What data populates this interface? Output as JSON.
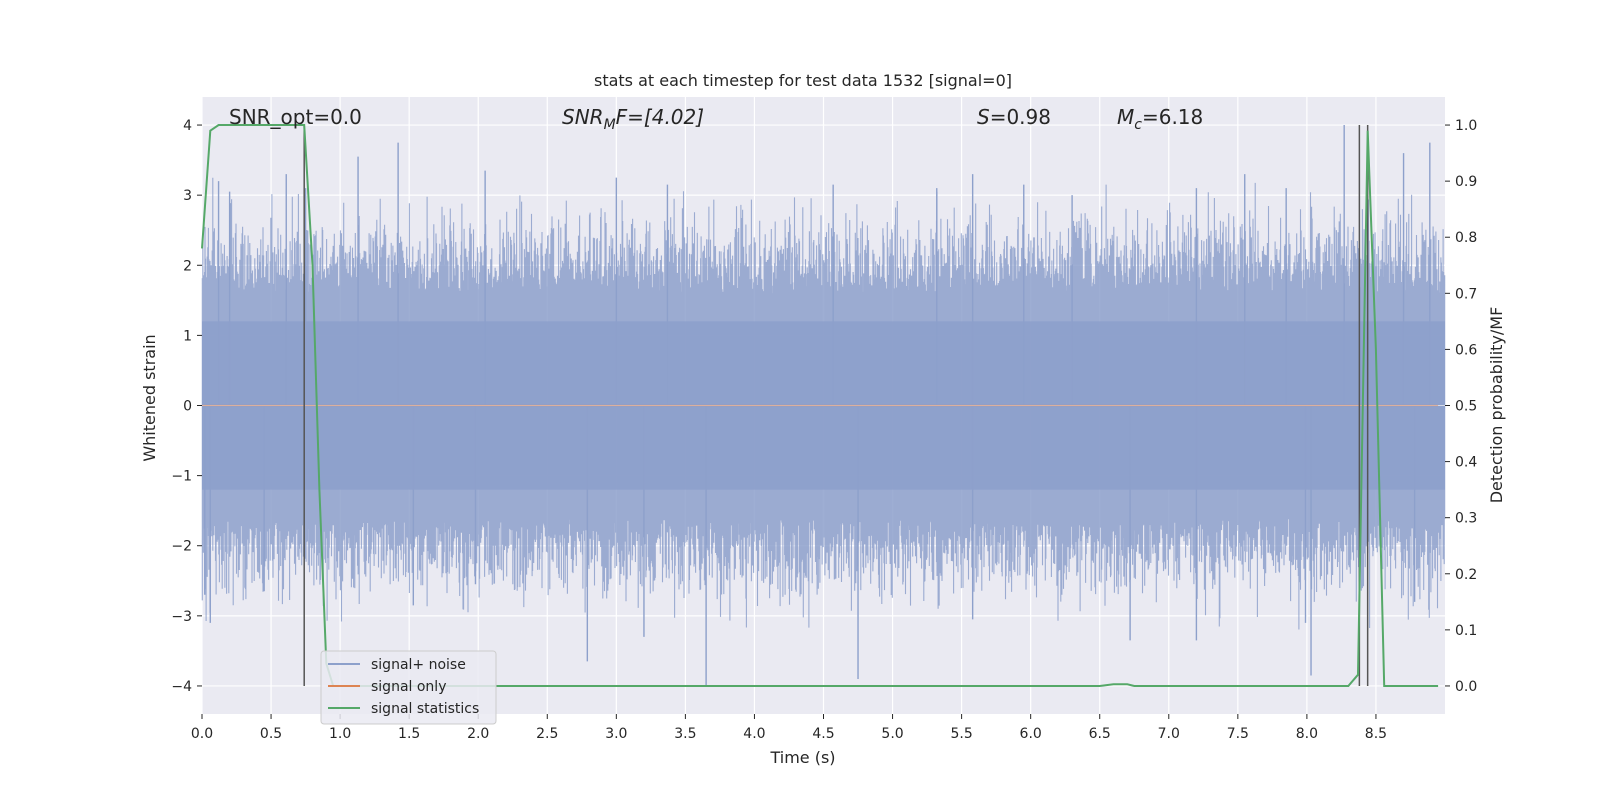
{
  "chart_data": {
    "type": "line",
    "title": "stats at each timestep for test data 1532 [signal=0]",
    "xlabel": "Time (s)",
    "ylabel": "Whitened strain",
    "y2label": "Detection probability/MF",
    "xlim": [
      0.0,
      9.0
    ],
    "ylim": [
      -4.4,
      4.4
    ],
    "y2lim": [
      -0.05,
      1.05
    ],
    "x_ticks": [
      0.0,
      0.5,
      1.0,
      1.5,
      2.0,
      2.5,
      3.0,
      3.5,
      4.0,
      4.5,
      5.0,
      5.5,
      6.0,
      6.5,
      7.0,
      7.5,
      8.0,
      8.5
    ],
    "x_tick_labels": [
      "0.0",
      "0.5",
      "1.0",
      "1.5",
      "2.0",
      "2.5",
      "3.0",
      "3.5",
      "4.0",
      "4.5",
      "5.0",
      "5.5",
      "6.0",
      "6.5",
      "7.0",
      "7.5",
      "8.0",
      "8.5"
    ],
    "y_ticks": [
      -4,
      -3,
      -2,
      -1,
      0,
      1,
      2,
      3,
      4
    ],
    "y_tick_labels": [
      "−4",
      "−3",
      "−2",
      "−1",
      "0",
      "1",
      "2",
      "3",
      "4"
    ],
    "y2_ticks": [
      0.0,
      0.1,
      0.2,
      0.3,
      0.4,
      0.5,
      0.6,
      0.7,
      0.8,
      0.9,
      1.0
    ],
    "y2_tick_labels": [
      "0.0",
      "0.1",
      "0.2",
      "0.3",
      "0.4",
      "0.5",
      "0.6",
      "0.7",
      "0.8",
      "0.9",
      "1.0"
    ],
    "grid": true,
    "legend_position": "bottom-left",
    "legend": [
      {
        "name": "signal+ noise",
        "color": "#8da0cb"
      },
      {
        "name": "signal only",
        "color": "#dd8452"
      },
      {
        "name": "signal statistics",
        "color": "#55a868"
      }
    ],
    "annotations": {
      "snr_opt": "SNR_opt=0.0",
      "snr_mf_main": "SNR",
      "snr_mf_sub": "M",
      "snr_mf_tail": "F=[4.02]",
      "s_main": "S",
      "s_tail": "=0.98",
      "mc_main": "M",
      "mc_sub": "c",
      "mc_tail": "=6.18"
    },
    "vertical_lines_x": [
      0.74,
      8.38,
      8.44
    ],
    "noise_series": {
      "name": "signal+ noise",
      "color": "#8da0cb",
      "typical_range": [
        -1.6,
        1.6
      ],
      "peaks": [
        {
          "x": 0.06,
          "y": -3.1
        },
        {
          "x": 0.02,
          "y": -2.7
        },
        {
          "x": 0.12,
          "y": 3.2
        },
        {
          "x": 0.2,
          "y": 3.05
        },
        {
          "x": 0.45,
          "y": -2.65
        },
        {
          "x": 0.61,
          "y": 3.3
        },
        {
          "x": 0.75,
          "y": 3.1
        },
        {
          "x": 1.13,
          "y": 3.55
        },
        {
          "x": 1.42,
          "y": 3.75
        },
        {
          "x": 1.53,
          "y": -2.85
        },
        {
          "x": 1.98,
          "y": -2.55
        },
        {
          "x": 2.05,
          "y": 3.35
        },
        {
          "x": 2.79,
          "y": -3.65
        },
        {
          "x": 3.0,
          "y": 3.25
        },
        {
          "x": 3.2,
          "y": -3.3
        },
        {
          "x": 3.37,
          "y": 3.15
        },
        {
          "x": 3.65,
          "y": -4.0
        },
        {
          "x": 4.57,
          "y": 3.15
        },
        {
          "x": 4.75,
          "y": -3.9
        },
        {
          "x": 5.32,
          "y": 3.1
        },
        {
          "x": 5.58,
          "y": 3.3
        },
        {
          "x": 5.58,
          "y": -3.05
        },
        {
          "x": 5.95,
          "y": 3.15
        },
        {
          "x": 6.3,
          "y": 3.0
        },
        {
          "x": 6.72,
          "y": -3.35
        },
        {
          "x": 7.2,
          "y": 3.1
        },
        {
          "x": 7.2,
          "y": -3.35
        },
        {
          "x": 7.55,
          "y": 3.3
        },
        {
          "x": 7.85,
          "y": 3.1
        },
        {
          "x": 7.99,
          "y": -3.1
        },
        {
          "x": 8.03,
          "y": -3.85
        },
        {
          "x": 8.27,
          "y": 4.0
        },
        {
          "x": 8.7,
          "y": 3.6
        },
        {
          "x": 8.89,
          "y": 3.75
        },
        {
          "x": 8.78,
          "y": -2.8
        }
      ]
    },
    "statistics_series": {
      "name": "signal statistics",
      "color": "#55a868",
      "x": [
        0.0,
        0.06,
        0.12,
        0.5,
        0.74,
        0.8,
        0.85,
        0.9,
        0.95,
        1.5,
        3.0,
        5.0,
        6.5,
        6.6,
        6.65,
        6.7,
        6.75,
        7.5,
        8.3,
        8.37,
        8.44,
        8.5,
        8.56,
        8.62,
        8.95
      ],
      "y": [
        0.78,
        0.99,
        1.0,
        1.0,
        1.0,
        0.75,
        0.35,
        0.04,
        0.0,
        0.0,
        0.0,
        0.0,
        0.0,
        0.003,
        0.003,
        0.003,
        0.0,
        0.0,
        0.0,
        0.02,
        0.99,
        0.6,
        0.0,
        0.0,
        0.0
      ]
    },
    "signal_only_series": {
      "name": "signal only",
      "color": "#dd8452",
      "x": [
        0.0,
        8.95
      ],
      "y": [
        0.0,
        0.0
      ]
    }
  }
}
